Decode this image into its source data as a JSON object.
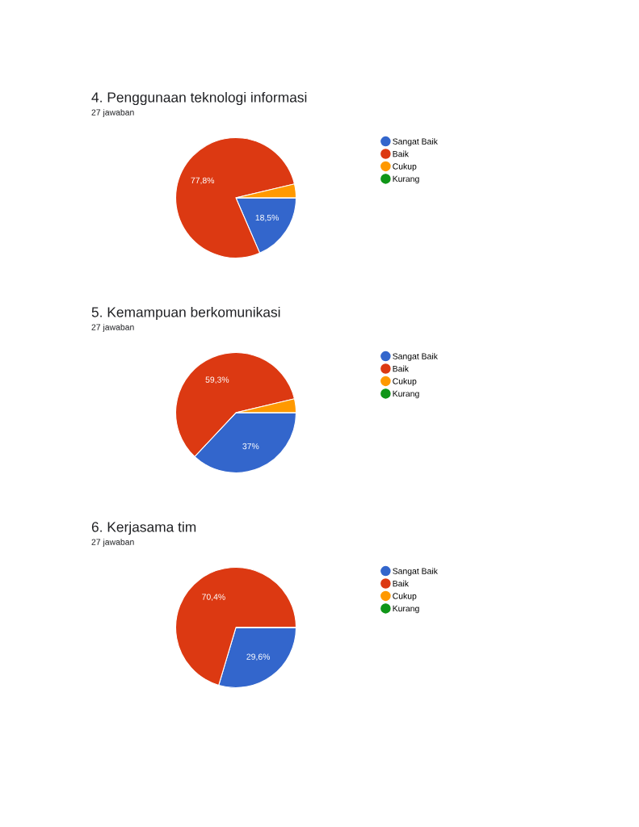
{
  "chart_data": [
    {
      "type": "pie",
      "title": "4. Penggunaan teknologi informasi",
      "subtitle": "27 jawaban",
      "categories": [
        "Sangat Baik",
        "Baik",
        "Cukup",
        "Kurang"
      ],
      "values": [
        18.5,
        77.8,
        3.7,
        0
      ],
      "colors": [
        "#3366cc",
        "#dc3912",
        "#ff9900",
        "#109618"
      ],
      "value_labels": [
        "18,5%",
        "77,8%",
        null,
        null
      ],
      "legend": "right"
    },
    {
      "type": "pie",
      "title": "5. Kemampuan berkomunikasi",
      "subtitle": "27 jawaban",
      "categories": [
        "Sangat Baik",
        "Baik",
        "Cukup",
        "Kurang"
      ],
      "values": [
        37,
        59.3,
        3.7,
        0
      ],
      "colors": [
        "#3366cc",
        "#dc3912",
        "#ff9900",
        "#109618"
      ],
      "value_labels": [
        "37%",
        "59,3%",
        null,
        null
      ],
      "legend": "right"
    },
    {
      "type": "pie",
      "title": "6. Kerjasama tim",
      "subtitle": "27 jawaban",
      "categories": [
        "Sangat Baik",
        "Baik",
        "Cukup",
        "Kurang"
      ],
      "values": [
        29.6,
        70.4,
        0,
        0
      ],
      "colors": [
        "#3366cc",
        "#dc3912",
        "#ff9900",
        "#109618"
      ],
      "value_labels": [
        "29,6%",
        "70,4%",
        null,
        null
      ],
      "legend": "right"
    }
  ]
}
